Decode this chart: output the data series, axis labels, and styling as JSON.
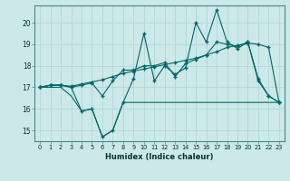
{
  "xlabel": "Humidex (Indice chaleur)",
  "bg_color": "#cce8e8",
  "line_color": "#006666",
  "grid_color": "#b0d8d8",
  "xlim": [
    -0.5,
    23.5
  ],
  "ylim": [
    14.5,
    20.8
  ],
  "yticks": [
    15,
    16,
    17,
    18,
    19,
    20
  ],
  "xticks": [
    0,
    1,
    2,
    3,
    4,
    5,
    6,
    7,
    8,
    9,
    10,
    11,
    12,
    13,
    14,
    15,
    16,
    17,
    18,
    19,
    20,
    21,
    22,
    23
  ],
  "line1_x": [
    0,
    1,
    2,
    3,
    4,
    5,
    6,
    7,
    8,
    9,
    10,
    11,
    12,
    13,
    14,
    15,
    16,
    17,
    18,
    19,
    20,
    21,
    22,
    23
  ],
  "line1_y": [
    17.0,
    17.1,
    17.1,
    17.05,
    17.15,
    17.25,
    17.35,
    17.5,
    17.65,
    17.75,
    17.85,
    17.95,
    18.05,
    18.15,
    18.25,
    18.35,
    18.5,
    18.65,
    18.85,
    18.95,
    19.05,
    19.0,
    18.85,
    16.3
  ],
  "line2_x": [
    0,
    1,
    2,
    3,
    4,
    5,
    6,
    7,
    8,
    9,
    10,
    11,
    12,
    13,
    14,
    15,
    16,
    17,
    18,
    19,
    20,
    21,
    22,
    23
  ],
  "line2_y": [
    17.0,
    17.1,
    17.1,
    17.0,
    17.1,
    17.2,
    16.6,
    17.3,
    17.8,
    17.8,
    18.0,
    18.0,
    18.15,
    17.5,
    18.1,
    18.3,
    18.5,
    19.1,
    19.0,
    18.9,
    19.1,
    17.4,
    16.6,
    16.3
  ],
  "line3_x": [
    0,
    1,
    2,
    3,
    4,
    5,
    6,
    7,
    8,
    9,
    10,
    11,
    12,
    13,
    14,
    15,
    16,
    17,
    18,
    19,
    20,
    21,
    22,
    23
  ],
  "line3_y": [
    17.0,
    17.0,
    17.0,
    16.6,
    15.9,
    16.0,
    14.7,
    15.0,
    16.3,
    16.3,
    16.3,
    16.3,
    16.3,
    16.3,
    16.3,
    16.3,
    16.3,
    16.3,
    16.3,
    16.3,
    16.3,
    16.3,
    16.3,
    16.3
  ],
  "line4_x": [
    0,
    1,
    2,
    3,
    4,
    5,
    6,
    7,
    8,
    9,
    10,
    11,
    12,
    13,
    14,
    15,
    16,
    17,
    18,
    19,
    20,
    21,
    22,
    23
  ],
  "line4_y": [
    17.0,
    17.1,
    17.1,
    17.0,
    15.9,
    16.0,
    14.7,
    15.0,
    16.3,
    17.4,
    19.5,
    17.3,
    18.0,
    17.6,
    17.9,
    20.0,
    19.1,
    20.6,
    19.1,
    18.8,
    19.1,
    17.3,
    16.6,
    16.3
  ]
}
